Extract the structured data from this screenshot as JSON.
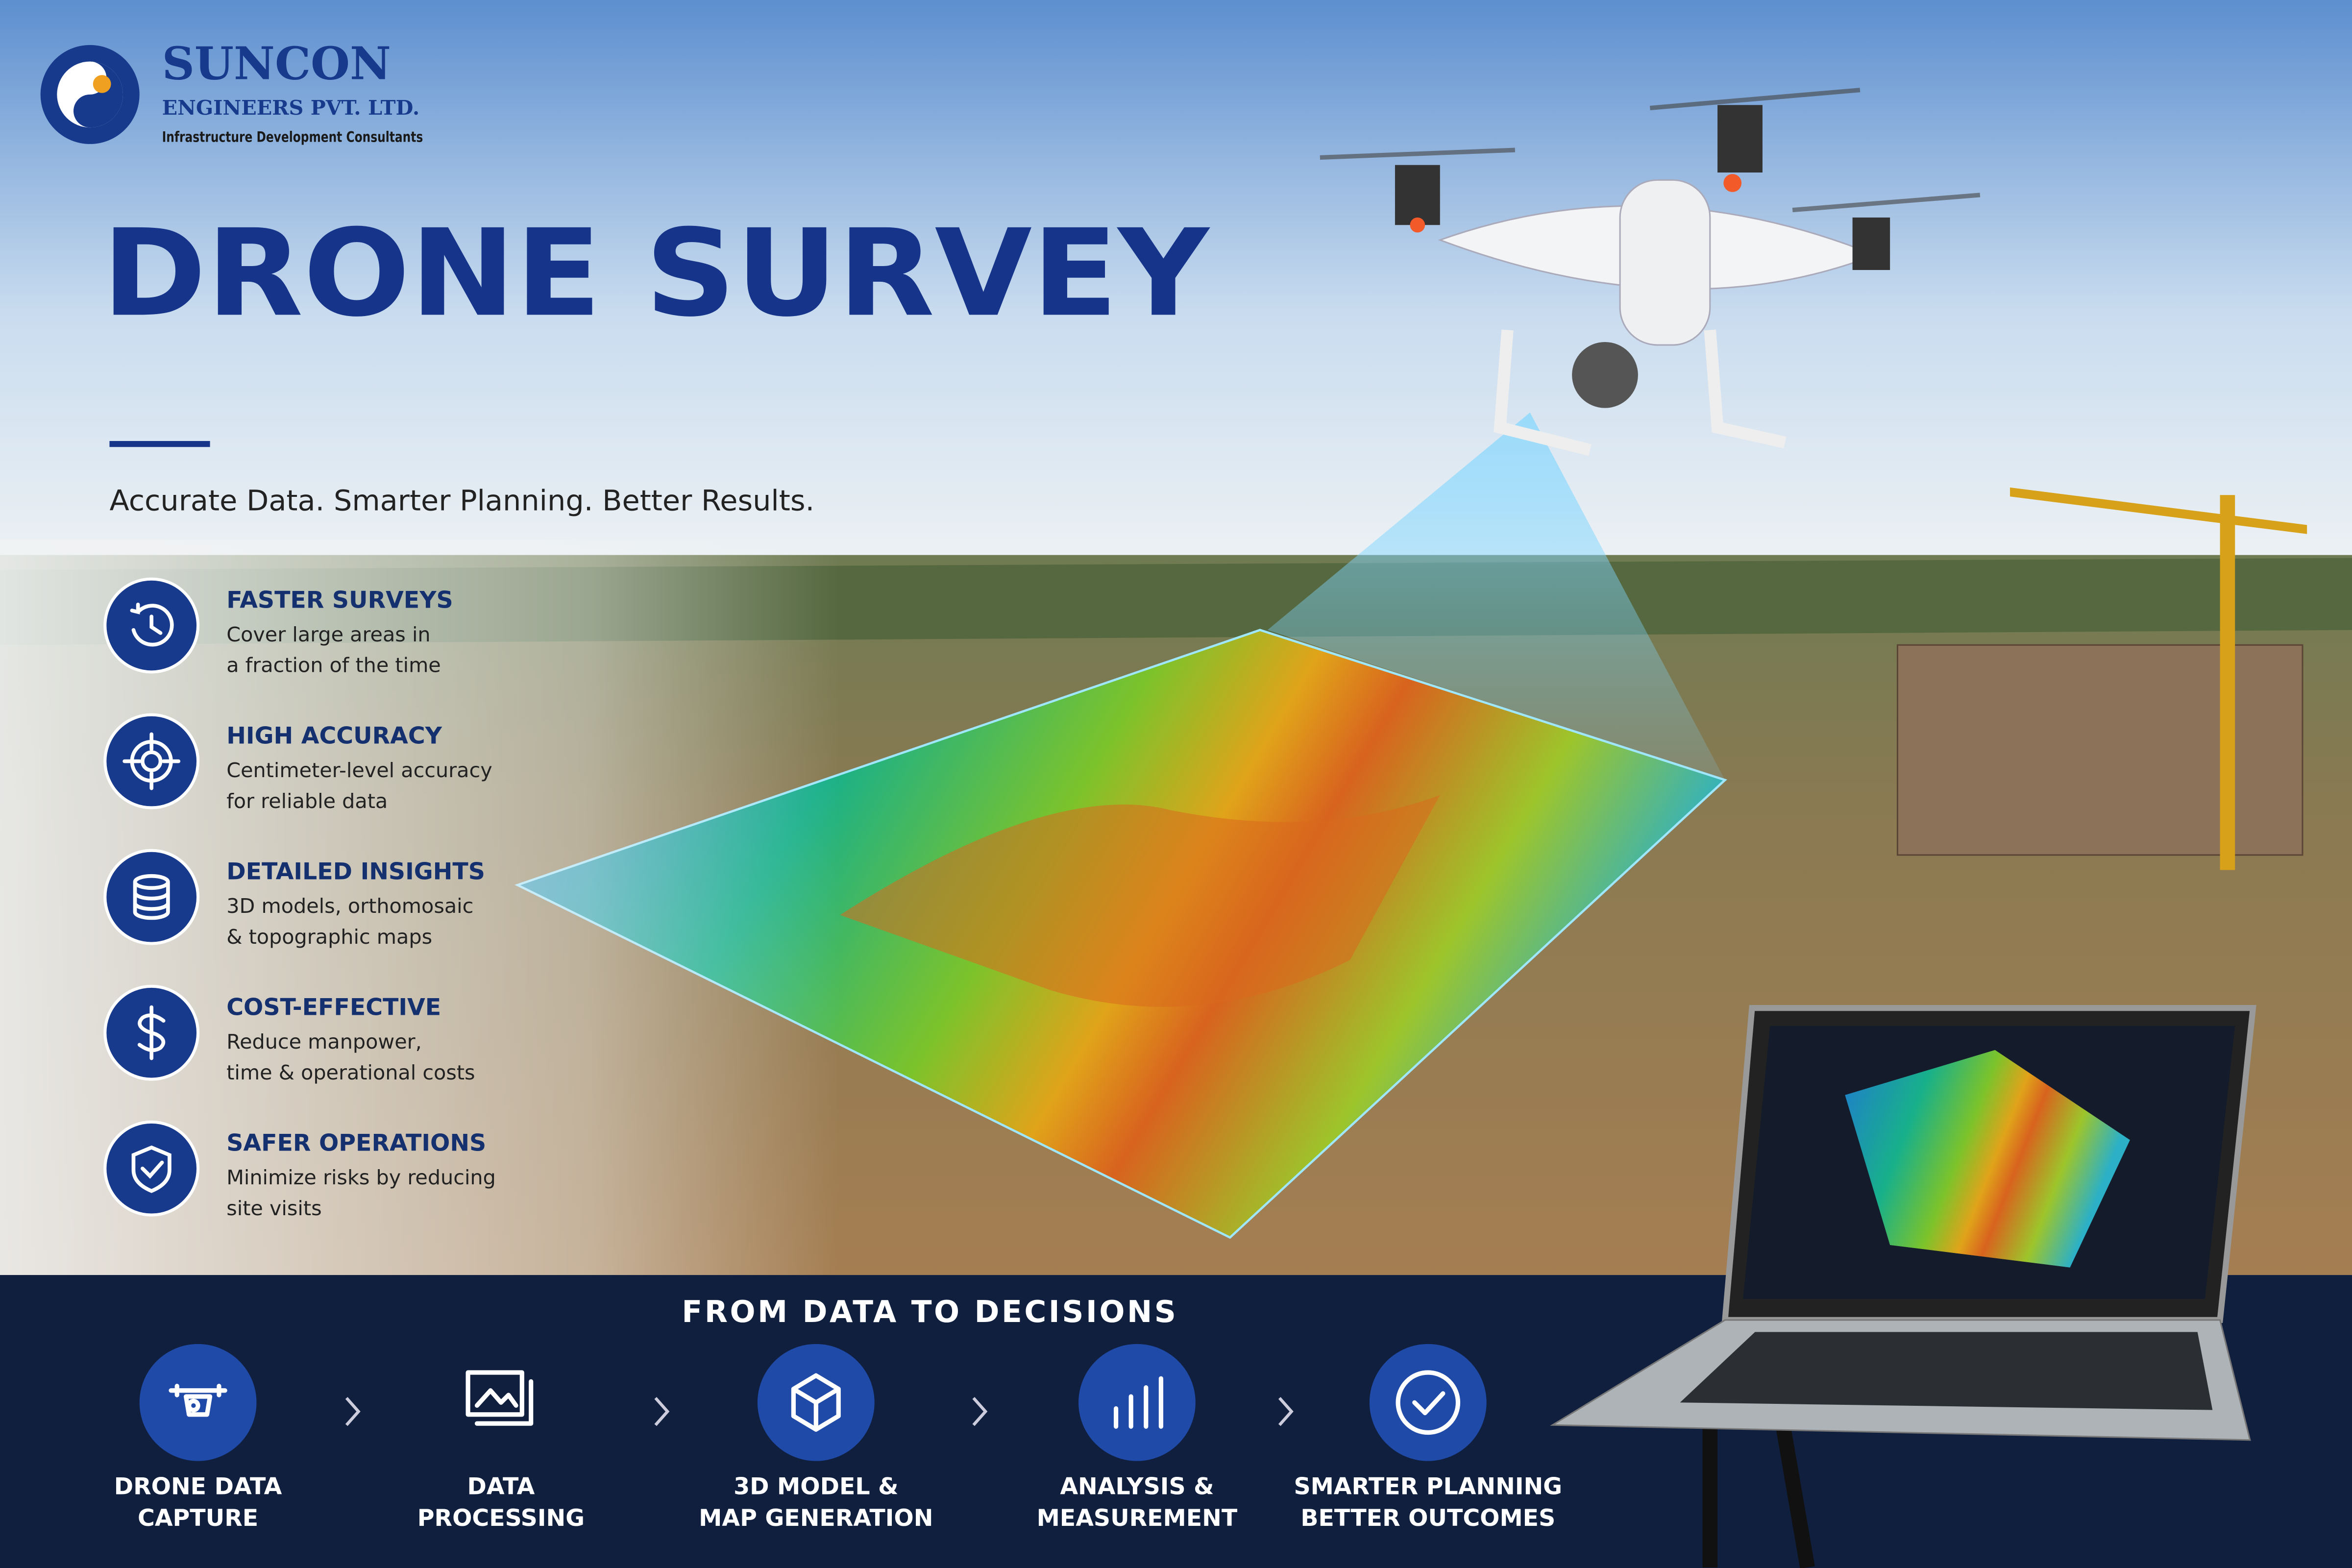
{
  "header": {
    "company": "SUNCON",
    "company_line2": "ENGINEERS PVT. LTD.",
    "tagline": "Infrastructure Development Consultants"
  },
  "title": "DRONE SURVEY",
  "slogan": "Accurate Data. Smarter Planning. Better Results.",
  "features": [
    {
      "title": "FASTER SURVEYS",
      "lines": [
        "Cover large areas in",
        "a fraction of the time"
      ]
    },
    {
      "title": "HIGH ACCURACY",
      "lines": [
        "Centimeter-level accuracy",
        "for reliable data"
      ]
    },
    {
      "title": "DETAILED INSIGHTS",
      "lines": [
        "3D models, orthomosaic",
        "& topographic maps"
      ]
    },
    {
      "title": "COST-EFFECTIVE",
      "lines": [
        "Reduce manpower,",
        "time & operational costs"
      ]
    },
    {
      "title": "SAFER OPERATIONS",
      "lines": [
        "Minimize risks by reducing",
        "site visits"
      ]
    }
  ],
  "process": {
    "heading": "FROM DATA TO DECISIONS",
    "steps": [
      {
        "lines": [
          "DRONE DATA",
          "CAPTURE"
        ]
      },
      {
        "lines": [
          "DATA",
          "PROCESSING"
        ]
      },
      {
        "lines": [
          "3D MODEL &",
          "MAP GENERATION"
        ]
      },
      {
        "lines": [
          "ANALYSIS &",
          "MEASUREMENT"
        ]
      },
      {
        "lines": [
          "SMARTER PLANNING",
          "BETTER OUTCOMES"
        ]
      }
    ]
  }
}
